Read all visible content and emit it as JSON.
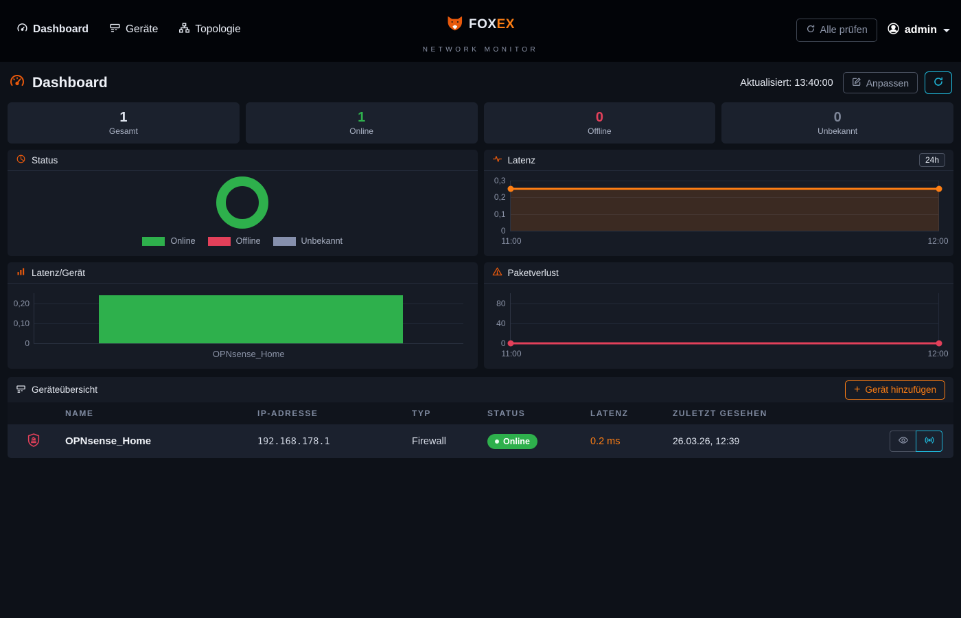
{
  "nav": {
    "items": [
      {
        "label": "Dashboard",
        "active": true
      },
      {
        "label": "Geräte",
        "active": false
      },
      {
        "label": "Topologie",
        "active": false
      }
    ],
    "brand": {
      "name_primary": "FOX",
      "name_secondary": "EX",
      "subtitle": "NETWORK MONITOR"
    },
    "check_all_label": "Alle prüfen",
    "user": "admin"
  },
  "header": {
    "title": "Dashboard",
    "updated": "Aktualisiert: 13:40:00",
    "customize_label": "Anpassen"
  },
  "stats": [
    {
      "value": "1",
      "label": "Gesamt",
      "color": "#dfe4ee"
    },
    {
      "value": "1",
      "label": "Online",
      "color": "#2eb04c"
    },
    {
      "value": "0",
      "label": "Offline",
      "color": "#e3405a"
    },
    {
      "value": "0",
      "label": "Unbekannt",
      "color": "#7d8597"
    }
  ],
  "chart_data": [
    {
      "type": "pie",
      "variant": "donut",
      "title": "Status",
      "series": [
        {
          "name": "Online",
          "value": 1,
          "color": "#2eb04c"
        },
        {
          "name": "Offline",
          "value": 0,
          "color": "#e3405a"
        },
        {
          "name": "Unbekannt",
          "value": 0,
          "color": "#8690ad"
        }
      ],
      "legend_position": "bottom"
    },
    {
      "type": "line",
      "title": "Latenz",
      "range_selected": "24h",
      "x": [
        "11:00",
        "12:00"
      ],
      "values": [
        0.25,
        0.25
      ],
      "ylim": [
        0,
        0.3
      ],
      "yticks": [
        "0,3",
        "0,2",
        "0,1",
        "0"
      ],
      "color": "#fd7e14",
      "area": true,
      "grid": true
    },
    {
      "type": "bar",
      "title": "Latenz/Gerät",
      "categories": [
        "OPNsense_Home"
      ],
      "values": [
        0.24
      ],
      "ylim": [
        0,
        0.25
      ],
      "yticks": [
        "0,20",
        "0,10",
        "0"
      ],
      "color": "#2eb04c",
      "grid": true
    },
    {
      "type": "line",
      "title": "Paketverlust",
      "x": [
        "11:00",
        "12:00"
      ],
      "values": [
        0,
        0
      ],
      "ylim": [
        0,
        100
      ],
      "yticks": [
        "80",
        "40",
        "0"
      ],
      "color": "#e3405a",
      "area": false,
      "grid": true
    }
  ],
  "table": {
    "title": "Geräteübersicht",
    "add_icon": "+",
    "add_button_label": "Gerät hinzufügen",
    "columns": [
      "NAME",
      "IP-ADRESSE",
      "TYP",
      "STATUS",
      "LATENZ",
      "ZULETZT GESEHEN"
    ],
    "rows": [
      {
        "name": "OPNsense_Home",
        "ip": "192.168.178.1",
        "type": "Firewall",
        "status": "Online",
        "latency": "0.2 ms",
        "last_seen": "26.03.26, 12:39"
      }
    ]
  },
  "colors": {
    "accent_orange": "#fd7e14",
    "status_online": "#2eb04c",
    "status_offline": "#e3405a",
    "status_unknown": "#8690ad",
    "accent_cyan": "#1fb6d8",
    "navbar_bg": "#020408",
    "page_bg": "#0d1118",
    "panel_bg": "#161b25"
  },
  "icons": [
    "gauge-icon",
    "server-icon",
    "sitemap-icon",
    "fox-logo-icon",
    "refresh-icon",
    "user-circle-icon",
    "caret-down-icon",
    "pencil-square-icon",
    "pie-chart-icon",
    "activity-icon",
    "bar-chart-icon",
    "warning-triangle-icon",
    "shield-firewall-icon",
    "eye-icon",
    "broadcast-icon",
    "plus-icon"
  ]
}
